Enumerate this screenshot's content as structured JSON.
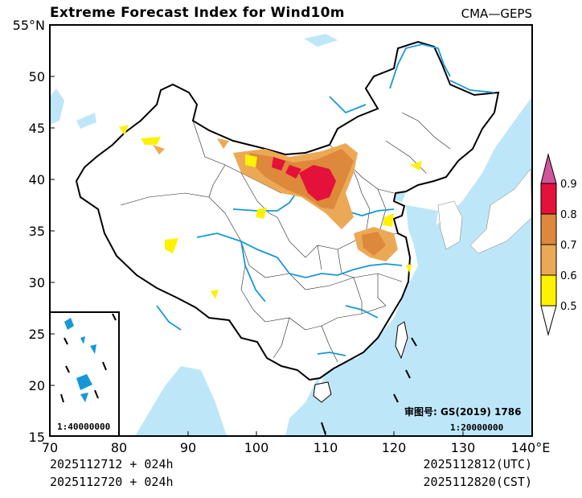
{
  "header": {
    "title": "Extreme Forecast Index for Wind10m",
    "model": "CMA—GEPS"
  },
  "axes": {
    "x_ticks": [
      "70",
      "80",
      "90",
      "100",
      "110",
      "120",
      "130",
      "140°E"
    ],
    "y_ticks": [
      "55°N",
      "50",
      "45",
      "40",
      "35",
      "30",
      "25",
      "20",
      "15"
    ]
  },
  "colorbar": {
    "labels": [
      "0.9",
      "0.8",
      "0.7",
      "0.6",
      "0.5"
    ],
    "colors": {
      "c09": "#d2559b",
      "c08": "#e4113b",
      "c07": "#dd883a",
      "c06": "#eca955",
      "c05": "#fff200"
    }
  },
  "annotations": {
    "approval": "审图号: GS(2019) 1786",
    "main_scale": "1:20000000",
    "inset_scale": "1:40000000"
  },
  "footer": {
    "init_utc": "2025112712 + 024h",
    "init_cst": "2025112720 + 024h",
    "valid_utc": "2025112812(UTC)",
    "valid_cst": "2025112820(CST)"
  },
  "chart_data": {
    "type": "map",
    "title": "Extreme Forecast Index for Wind10m",
    "lon_range": [
      70,
      140
    ],
    "lat_range": [
      15,
      55
    ],
    "legend_levels": [
      0.5,
      0.6,
      0.7,
      0.8,
      0.9
    ]
  }
}
